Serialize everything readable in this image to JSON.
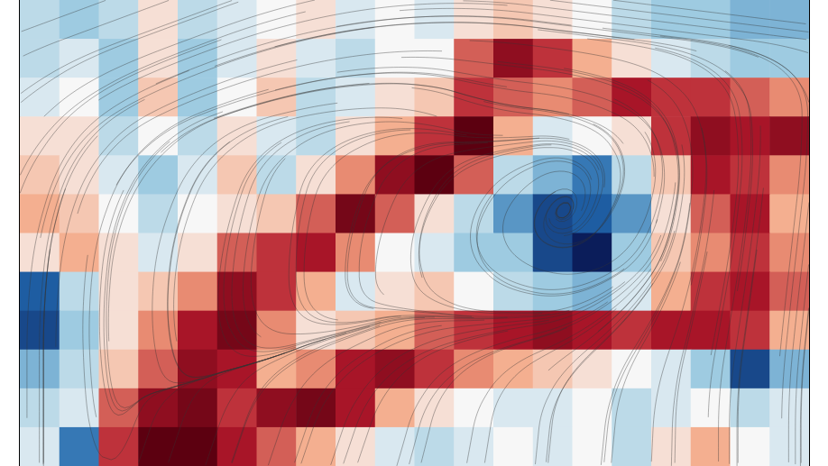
{
  "chart_data": {
    "type": "heatmap",
    "tick_labels": false,
    "color_range": [
      -1,
      1
    ],
    "cells": [
      [
        -0.2,
        -0.3,
        -0.2,
        0.1,
        -0.2,
        -0.1,
        0,
        0.1,
        -0.1,
        0,
        -0.1,
        0.1,
        0.2,
        0.1,
        0,
        -0.2,
        -0.3,
        -0.3,
        -0.4,
        -0.4
      ],
      [
        -0.2,
        -0.1,
        -0.3,
        0.1,
        -0.3,
        -0.1,
        0.1,
        -0.1,
        -0.2,
        0,
        0,
        0.5,
        0.8,
        0.6,
        0.3,
        0.1,
        -0.1,
        -0.2,
        -0.3,
        -0.3
      ],
      [
        -0.1,
        0,
        -0.3,
        0.2,
        -0.3,
        0,
        0.2,
        -0.2,
        -0.1,
        0.1,
        0.2,
        0.6,
        0.5,
        0.4,
        0.5,
        0.7,
        0.6,
        0.6,
        0.5,
        0.4
      ],
      [
        0.1,
        0.1,
        -0.2,
        0,
        -0.2,
        0.1,
        -0.1,
        -0.2,
        0.1,
        0.3,
        0.6,
        1.0,
        0.3,
        -0.1,
        0,
        0.1,
        0.6,
        0.8,
        0.7,
        0.8
      ],
      [
        0.2,
        0.1,
        -0.1,
        -0.3,
        -0.1,
        0.2,
        -0.2,
        0.1,
        0.4,
        0.8,
        1.0,
        0.5,
        -0.2,
        -0.4,
        -0.6,
        -0.2,
        0.2,
        0.7,
        0.6,
        0.4
      ],
      [
        0.3,
        0.2,
        0,
        -0.2,
        0,
        0.1,
        0.2,
        0.5,
        0.9,
        0.5,
        0.1,
        -0.2,
        -0.5,
        -0.8,
        -0.7,
        -0.5,
        0.1,
        0.5,
        0.7,
        0.3
      ],
      [
        0.1,
        0.3,
        0.1,
        -0.1,
        0.1,
        0.5,
        0.6,
        0.7,
        0.4,
        0,
        -0.1,
        -0.3,
        -0.3,
        -0.8,
        -1.0,
        -0.3,
        0.2,
        0.4,
        0.6,
        0.4
      ],
      [
        -0.7,
        -0.2,
        0.1,
        0.2,
        0.4,
        0.8,
        0.6,
        0.3,
        -0.1,
        0.1,
        0.2,
        0,
        -0.2,
        -0.3,
        -0.4,
        -0.1,
        0.3,
        0.6,
        0.7,
        0.5
      ],
      [
        -0.8,
        -0.3,
        0.1,
        0.4,
        0.7,
        0.9,
        0.4,
        0.1,
        0.2,
        0.3,
        0.5,
        0.6,
        0.7,
        0.8,
        0.7,
        0.6,
        0.7,
        0.7,
        0.6,
        0.3
      ],
      [
        -0.4,
        -0.2,
        0.2,
        0.5,
        0.8,
        0.7,
        0.3,
        0.4,
        0.7,
        0.8,
        0.6,
        0.4,
        0.3,
        0.2,
        0.1,
        0,
        -0.1,
        -0.3,
        -0.8,
        -0.4
      ],
      [
        -0.2,
        -0.1,
        0.5,
        0.8,
        0.9,
        0.6,
        0.8,
        0.9,
        0.7,
        0.3,
        0.1,
        0,
        -0.1,
        -0.1,
        0,
        -0.2,
        -0.1,
        0,
        -0.2,
        -0.1
      ],
      [
        -0.1,
        -0.6,
        0.6,
        1.0,
        1.0,
        0.7,
        0.5,
        0.3,
        0.1,
        -0.1,
        -0.2,
        -0.1,
        0,
        -0.1,
        0,
        -0.2,
        0.1,
        0.3,
        0,
        -0.1
      ]
    ],
    "u": [
      [
        -0.8,
        -0.8,
        -0.8,
        -0.8,
        -0.8,
        -0.8,
        -0.8,
        -0.8,
        -0.8,
        -0.8
      ],
      [
        -0.6,
        -0.7,
        -0.8,
        -0.9,
        -0.8,
        -0.6,
        -1,
        -0.8,
        -0.3,
        0
      ],
      [
        -0.3,
        -0.4,
        -0.3,
        -0.2,
        -0.3,
        -0.4,
        -0.5,
        0.3,
        0.1,
        0.1
      ],
      [
        -0.1,
        -0.1,
        -0.1,
        0,
        0,
        0.2,
        0.7,
        0.7,
        0.2,
        0.1
      ],
      [
        0,
        0.1,
        0.2,
        0.5,
        0.7,
        0.8,
        0.8,
        0.5,
        0.2,
        0.1
      ],
      [
        0,
        0.2,
        0.3,
        0.3,
        0.3,
        0.2,
        0.1,
        0.1,
        0,
        0
      ]
    ],
    "v": [
      [
        -0.3,
        -0.3,
        -0.3,
        -0.2,
        -0.1,
        0,
        0.1,
        0.1,
        0.1,
        0.1
      ],
      [
        -0.6,
        -0.4,
        -0.3,
        -0.2,
        0,
        0.3,
        0.1,
        0.4,
        0.8,
        0.8
      ],
      [
        -0.9,
        -0.8,
        -0.8,
        -0.8,
        -0.7,
        -0.6,
        -0.5,
        0.8,
        1,
        0.9
      ],
      [
        -1,
        -1,
        -0.9,
        -0.8,
        -0.4,
        -0.5,
        -0.3,
        0.4,
        0.9,
        0.9
      ],
      [
        -1,
        -0.8,
        -0.3,
        0.2,
        0.4,
        0.3,
        0.3,
        0.6,
        0.9,
        1
      ],
      [
        -1,
        0.6,
        0.9,
        0.9,
        0.9,
        1,
        1,
        1,
        1,
        1
      ]
    ]
  }
}
